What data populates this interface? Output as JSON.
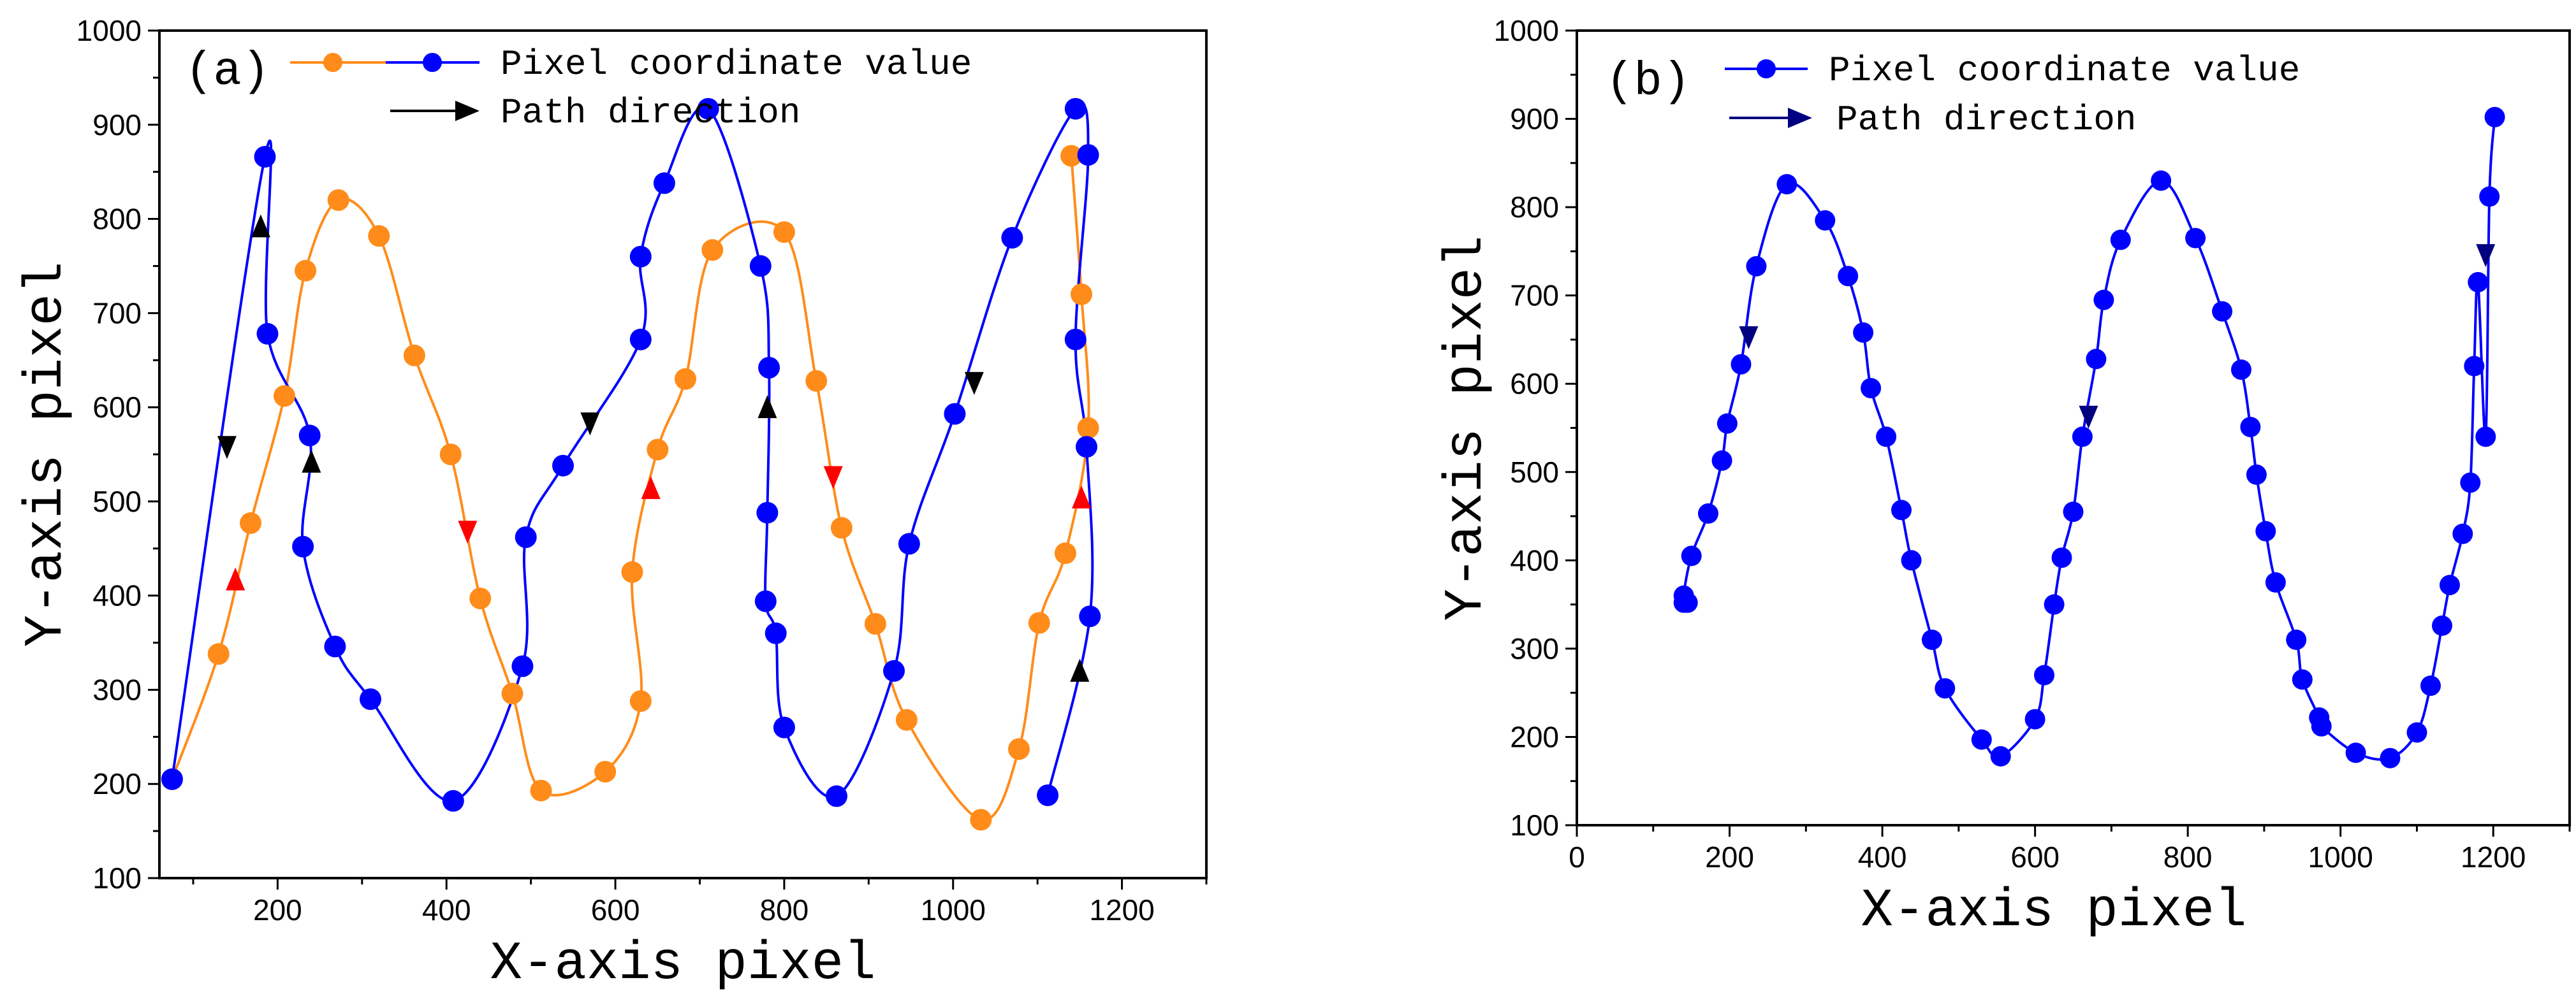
{
  "chart_data": [
    {
      "type": "line",
      "panel_label": "(a)",
      "xlabel": "X-axis pixel",
      "ylabel": "Y-axis pixel",
      "xlim": [
        60,
        1300
      ],
      "ylim": [
        100,
        1000
      ],
      "xticks": [
        200,
        400,
        600,
        800,
        1000,
        1200
      ],
      "yticks": [
        100,
        200,
        300,
        400,
        500,
        600,
        700,
        800,
        900,
        1000
      ],
      "legend": [
        {
          "label": "Pixel coordinate value",
          "kind": "series-pair",
          "colors": [
            "#FF8C1A",
            "#0000FF"
          ]
        },
        {
          "label": "Path direction",
          "kind": "arrow",
          "color": "#000000"
        }
      ],
      "series": [
        {
          "name": "orange path",
          "color": "#FF8C1A",
          "points": [
            [
              75,
              205
            ],
            [
              130,
              338
            ],
            [
              168,
              477
            ],
            [
              208,
              612
            ],
            [
              233,
              745
            ],
            [
              272,
              820
            ],
            [
              320,
              782
            ],
            [
              362,
              655
            ],
            [
              405,
              550
            ],
            [
              440,
              397
            ],
            [
              478,
              296
            ],
            [
              512,
              193
            ],
            [
              588,
              213
            ],
            [
              630,
              288
            ],
            [
              620,
              425
            ],
            [
              650,
              555
            ],
            [
              683,
              630
            ],
            [
              715,
              767
            ],
            [
              800,
              786
            ],
            [
              838,
              628
            ],
            [
              868,
              472
            ],
            [
              908,
              370
            ],
            [
              945,
              268
            ],
            [
              1033,
              162
            ],
            [
              1078,
              237
            ],
            [
              1102,
              371
            ],
            [
              1133,
              445
            ],
            [
              1160,
              578
            ],
            [
              1152,
              720
            ],
            [
              1140,
              867
            ]
          ]
        },
        {
          "name": "blue path",
          "color": "#0000FF",
          "points": [
            [
              75,
              205
            ],
            [
              185,
              866
            ],
            [
              188,
              678
            ],
            [
              238,
              570
            ],
            [
              230,
              452
            ],
            [
              268,
              346
            ],
            [
              310,
              290
            ],
            [
              408,
              182
            ],
            [
              490,
              325
            ],
            [
              494,
              462
            ],
            [
              538,
              538
            ],
            [
              630,
              672
            ],
            [
              630,
              760
            ],
            [
              658,
              838
            ],
            [
              710,
              917
            ],
            [
              772,
              750
            ],
            [
              782,
              642
            ],
            [
              780,
              488
            ],
            [
              778,
              394
            ],
            [
              790,
              360
            ],
            [
              800,
              260
            ],
            [
              862,
              187
            ],
            [
              930,
              320
            ],
            [
              948,
              455
            ],
            [
              1002,
              593
            ],
            [
              1070,
              780
            ],
            [
              1145,
              917
            ],
            [
              1160,
              868
            ],
            [
              1145,
              672
            ],
            [
              1158,
              558
            ],
            [
              1162,
              378
            ],
            [
              1112,
              188
            ]
          ]
        }
      ],
      "arrows": [
        {
          "color": "#FF0000",
          "at": [
            150,
            415
          ],
          "direction": "up"
        },
        {
          "color": "#FF0000",
          "at": [
            425,
            470
          ],
          "direction": "down"
        },
        {
          "color": "#FF0000",
          "at": [
            642,
            512
          ],
          "direction": "up"
        },
        {
          "color": "#FF0000",
          "at": [
            858,
            528
          ],
          "direction": "down"
        },
        {
          "color": "#FF0000",
          "at": [
            1152,
            502
          ],
          "direction": "up"
        },
        {
          "color": "#000000",
          "at": [
            140,
            560
          ],
          "direction": "down"
        },
        {
          "color": "#000000",
          "at": [
            180,
            790
          ],
          "direction": "up"
        },
        {
          "color": "#000000",
          "at": [
            240,
            540
          ],
          "direction": "up"
        },
        {
          "color": "#000000",
          "at": [
            570,
            585
          ],
          "direction": "down"
        },
        {
          "color": "#000000",
          "at": [
            780,
            598
          ],
          "direction": "up"
        },
        {
          "color": "#000000",
          "at": [
            1025,
            628
          ],
          "direction": "down"
        },
        {
          "color": "#000000",
          "at": [
            1150,
            318
          ],
          "direction": "up"
        }
      ]
    },
    {
      "type": "line",
      "panel_label": "(b)",
      "xlabel": "X-axis pixel",
      "ylabel": "Y-axis pixel",
      "xlim": [
        0,
        1300
      ],
      "ylim": [
        100,
        1000
      ],
      "xticks": [
        0,
        200,
        400,
        600,
        800,
        1000,
        1200
      ],
      "yticks": [
        100,
        200,
        300,
        400,
        500,
        600,
        700,
        800,
        900,
        1000
      ],
      "legend": [
        {
          "label": "Pixel coordinate value",
          "kind": "series",
          "colors": [
            "#0000FF"
          ]
        },
        {
          "label": "Path direction",
          "kind": "arrow",
          "color": "#000080"
        }
      ],
      "series": [
        {
          "name": "blue path",
          "color": "#0000FF",
          "points": [
            [
              140,
              352
            ],
            [
              145,
              352
            ],
            [
              140,
              360
            ],
            [
              150,
              405
            ],
            [
              172,
              453
            ],
            [
              190,
              513
            ],
            [
              197,
              555
            ],
            [
              215,
              622
            ],
            [
              235,
              733
            ],
            [
              275,
              826
            ],
            [
              325,
              785
            ],
            [
              355,
              722
            ],
            [
              375,
              658
            ],
            [
              385,
              595
            ],
            [
              405,
              540
            ],
            [
              425,
              457
            ],
            [
              438,
              400
            ],
            [
              465,
              310
            ],
            [
              482,
              255
            ],
            [
              530,
              197
            ],
            [
              555,
              178
            ],
            [
              600,
              220
            ],
            [
              612,
              270
            ],
            [
              625,
              350
            ],
            [
              635,
              403
            ],
            [
              650,
              455
            ],
            [
              662,
              540
            ],
            [
              680,
              628
            ],
            [
              690,
              695
            ],
            [
              712,
              763
            ],
            [
              765,
              830
            ],
            [
              810,
              765
            ],
            [
              845,
              682
            ],
            [
              870,
              616
            ],
            [
              882,
              551
            ],
            [
              890,
              497
            ],
            [
              902,
              433
            ],
            [
              915,
              375
            ],
            [
              942,
              310
            ],
            [
              950,
              265
            ],
            [
              972,
              222
            ],
            [
              975,
              212
            ],
            [
              1020,
              182
            ],
            [
              1065,
              176
            ],
            [
              1100,
              205
            ],
            [
              1118,
              258
            ],
            [
              1133,
              326
            ],
            [
              1143,
              372
            ],
            [
              1160,
              430
            ],
            [
              1170,
              488
            ],
            [
              1175,
              620
            ],
            [
              1180,
              715
            ],
            [
              1190,
              540
            ],
            [
              1195,
              812
            ],
            [
              1202,
              902
            ]
          ]
        }
      ],
      "arrows": [
        {
          "color": "#000080",
          "at": [
            225,
            655
          ],
          "direction": "down"
        },
        {
          "color": "#000080",
          "at": [
            670,
            565
          ],
          "direction": "down"
        },
        {
          "color": "#000080",
          "at": [
            1190,
            748
          ],
          "direction": "down"
        }
      ]
    }
  ]
}
